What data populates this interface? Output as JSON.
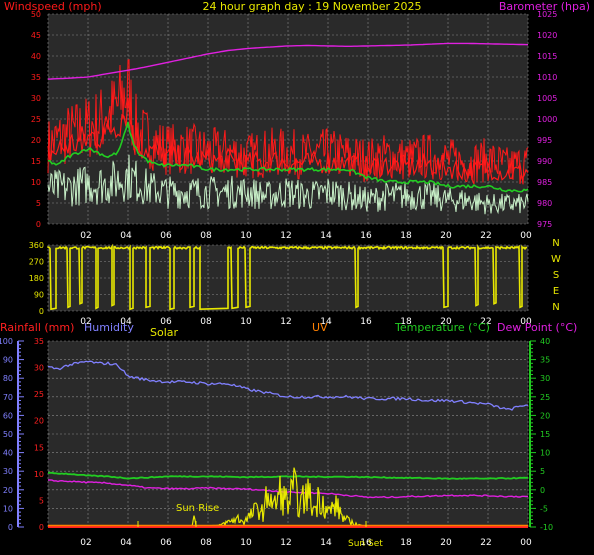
{
  "title": "24 hour graph day : 19 November 2025",
  "colors": {
    "background": "#000000",
    "plot_background": "#2a2a2a",
    "grid": "#8a8a8a",
    "wind_speed": "#ff1a1a",
    "wind_gust_line": "#22cc22",
    "wind_avg": "#c8f0c8",
    "barometer": "#e020e0",
    "direction": "#e8e800",
    "rainfall": "#ff2020",
    "humidity": "#8080ff",
    "solar": "#e8e800",
    "uv": "#ff8000",
    "temperature": "#22cc22",
    "dew_point": "#e020e0"
  },
  "chart_data": [
    {
      "type": "line",
      "name": "wind-barometer",
      "left_axis_label": "Windspeed (mph)",
      "right_axis_label": "Barometer (hpa)",
      "left_ylim": [
        0,
        50
      ],
      "left_ticks": [
        "0",
        "5",
        "10",
        "15",
        "20",
        "25",
        "30",
        "35",
        "40",
        "45",
        "50"
      ],
      "right_ylim": [
        975,
        1025
      ],
      "right_ticks": [
        "975",
        "980",
        "985",
        "990",
        "995",
        "1000",
        "1005",
        "1010",
        "1015",
        "1020",
        "1025"
      ],
      "x_ticks": [
        "02",
        "04",
        "06",
        "08",
        "10",
        "12",
        "14",
        "16",
        "18",
        "20",
        "22",
        "00"
      ],
      "x_hours": [
        0,
        24
      ],
      "grid": true,
      "series": [
        {
          "key": "wind_max",
          "axis": "left",
          "color_key": "wind_speed",
          "x": [
            0,
            1,
            2,
            3,
            3.5,
            3.8,
            4,
            4.3,
            4.6,
            5,
            5.5,
            6,
            7,
            8,
            9,
            10,
            11,
            12,
            13,
            14,
            15,
            16,
            17,
            18,
            19,
            20,
            21,
            22,
            23,
            24
          ],
          "y": [
            22,
            25,
            27,
            30,
            33,
            36,
            38,
            28,
            25,
            24,
            22,
            21,
            21,
            20,
            20,
            19,
            20,
            20,
            19,
            20,
            19,
            18,
            19,
            18,
            19,
            18,
            17,
            18,
            16,
            17
          ]
        },
        {
          "key": "wind_gust_line",
          "axis": "left",
          "color_key": "wind_gust_line",
          "x": [
            0,
            0.5,
            1,
            1.5,
            2,
            2.5,
            3,
            3.5,
            3.8,
            4,
            4.2,
            4.5,
            5,
            5.5,
            6,
            6.5,
            7,
            8,
            9,
            10,
            11,
            12,
            13,
            14,
            15,
            16,
            17,
            18,
            19,
            20,
            21,
            22,
            23,
            24
          ],
          "y": [
            15,
            14,
            16,
            17,
            18,
            17,
            16,
            17,
            21,
            24,
            20,
            17,
            15,
            14,
            14,
            14,
            14,
            13,
            13,
            13,
            13,
            13,
            13,
            13,
            13,
            11,
            10,
            10,
            10,
            9,
            9,
            9,
            8,
            8
          ]
        },
        {
          "key": "wind_avg",
          "axis": "left",
          "color_key": "wind_avg",
          "x": [
            0,
            1,
            2,
            3,
            4,
            5,
            6,
            7,
            8,
            9,
            10,
            11,
            12,
            13,
            14,
            15,
            16,
            17,
            18,
            19,
            20,
            21,
            22,
            23,
            24
          ],
          "y": [
            9,
            9,
            10,
            10,
            12,
            9,
            8,
            8,
            8,
            8,
            8,
            7,
            8,
            7,
            8,
            7,
            6,
            7,
            7,
            7,
            6,
            6,
            5,
            5,
            5
          ]
        },
        {
          "key": "barometer",
          "axis": "right",
          "color_key": "barometer",
          "x": [
            0,
            1,
            2,
            3,
            4,
            5,
            6,
            7,
            8,
            9,
            10,
            11,
            12,
            13,
            14,
            15,
            16,
            17,
            18,
            19,
            20,
            21,
            22,
            23,
            24
          ],
          "y": [
            1009.5,
            1009.7,
            1010,
            1010.8,
            1011.6,
            1012.5,
            1013.5,
            1014.5,
            1015.5,
            1016.3,
            1016.8,
            1017.1,
            1017.4,
            1017.5,
            1017.4,
            1017.3,
            1017.4,
            1017.5,
            1017.6,
            1017.8,
            1018,
            1018,
            1017.9,
            1017.8,
            1017.7
          ]
        }
      ]
    },
    {
      "type": "line",
      "name": "wind-direction",
      "ylim": [
        0,
        360
      ],
      "left_ticks": [
        "0",
        "90",
        "180",
        "270",
        "360"
      ],
      "right_labels": [
        "N",
        "W",
        "S",
        "E",
        "N"
      ],
      "x_ticks": [
        "02",
        "04",
        "06",
        "08",
        "10",
        "12",
        "14",
        "16",
        "18",
        "20",
        "22",
        "00"
      ],
      "x_hours": [
        0,
        24
      ],
      "grid": true,
      "baseline": 345,
      "drops": [
        {
          "from": 0.15,
          "to": 0.4,
          "value": 10
        },
        {
          "from": 1.0,
          "to": 1.1,
          "value": 20
        },
        {
          "from": 1.6,
          "to": 1.7,
          "value": 40
        },
        {
          "from": 2.4,
          "to": 2.5,
          "value": 15
        },
        {
          "from": 3.2,
          "to": 3.3,
          "value": 30
        },
        {
          "from": 4.1,
          "to": 4.25,
          "value": 10
        },
        {
          "from": 4.9,
          "to": 5.1,
          "value": 20
        },
        {
          "from": 6.1,
          "to": 6.3,
          "value": 10
        },
        {
          "from": 7.1,
          "to": 7.3,
          "value": 20
        },
        {
          "from": 7.6,
          "to": 9.0,
          "value": 10
        },
        {
          "from": 9.2,
          "to": 9.5,
          "value": 15
        },
        {
          "from": 9.9,
          "to": 10.1,
          "value": 20
        },
        {
          "from": 15.4,
          "to": 15.5,
          "value": 20
        },
        {
          "from": 19.8,
          "to": 20.0,
          "value": 20
        },
        {
          "from": 21.4,
          "to": 21.5,
          "value": 30
        },
        {
          "from": 22.3,
          "to": 22.4,
          "value": 40
        },
        {
          "from": 23.6,
          "to": 23.7,
          "value": 20
        }
      ]
    },
    {
      "type": "line",
      "name": "rain-humidity-temperature",
      "labels": {
        "rainfall": "Rainfall (mm)",
        "humidity": "Humidity",
        "solar": "Solar",
        "uv": "UV",
        "temperature": "Temperature (°C)",
        "dew_point": "Dew Point (°C)"
      },
      "humidity_ticks": [
        "0",
        "10",
        "20",
        "30",
        "40",
        "50",
        "60",
        "70",
        "80",
        "90",
        "100"
      ],
      "humidity_ylim": [
        0,
        100
      ],
      "rain_ticks": [
        "0",
        "5",
        "10",
        "15",
        "20",
        "25",
        "30",
        "35"
      ],
      "rain_ylim": [
        0,
        35
      ],
      "temp_ticks": [
        "-10",
        "-5",
        "0",
        "5",
        "10",
        "15",
        "20",
        "25",
        "30",
        "35",
        "40"
      ],
      "temp_ylim": [
        -10,
        40
      ],
      "x_ticks": [
        "02",
        "04",
        "06",
        "08",
        "10",
        "12",
        "14",
        "16",
        "18",
        "20",
        "22",
        "00"
      ],
      "x_hours": [
        0,
        24
      ],
      "grid": true,
      "annotations": [
        {
          "text": "Sun Rise",
          "hour": 7.4
        },
        {
          "text": "Sun Set",
          "hour": 15.9
        }
      ],
      "series": [
        {
          "key": "humidity",
          "axis": "humidity",
          "color_key": "humidity",
          "x": [
            0,
            0.5,
            1,
            1.5,
            2,
            2.5,
            3,
            3.5,
            4,
            4.5,
            5,
            6,
            7,
            8,
            9,
            10,
            11,
            12,
            13,
            14,
            15,
            16,
            17,
            18,
            19,
            20,
            21,
            22,
            23,
            24
          ],
          "y": [
            86,
            85,
            87,
            88,
            89,
            88,
            88,
            87,
            81,
            80,
            79,
            78,
            78,
            77,
            77,
            74,
            72,
            70,
            70,
            70,
            70,
            69,
            69,
            69,
            68,
            68,
            67,
            66,
            63,
            66
          ]
        },
        {
          "key": "temperature",
          "axis": "temp",
          "color_key": "temperature",
          "x": [
            0,
            1,
            2,
            3,
            4,
            5,
            6,
            7,
            8,
            9,
            10,
            11,
            12,
            13,
            14,
            15,
            16,
            17,
            18,
            19,
            20,
            21,
            22,
            23,
            24
          ],
          "y": [
            4.5,
            4.3,
            3.8,
            3.6,
            3.1,
            3.3,
            3.6,
            3.6,
            3.6,
            3.5,
            3.4,
            3.5,
            3.6,
            3.5,
            3.5,
            3.5,
            3.4,
            3.3,
            3.2,
            3.1,
            3.0,
            3.0,
            3.0,
            3.1,
            3.2
          ]
        },
        {
          "key": "dew_point",
          "axis": "temp",
          "color_key": "dew_point",
          "x": [
            0,
            1,
            2,
            3,
            4,
            5,
            6,
            7,
            8,
            9,
            10,
            11,
            12,
            13,
            14,
            15,
            16,
            17,
            18,
            19,
            20,
            21,
            22,
            23,
            24
          ],
          "y": [
            2.5,
            2.3,
            2.0,
            1.8,
            1.2,
            0.5,
            0.3,
            0.3,
            0.5,
            0.3,
            0.2,
            -0.2,
            -0.6,
            -0.8,
            -1.0,
            -1.5,
            -2.0,
            -2.0,
            -1.8,
            -1.7,
            -1.5,
            -1.5,
            -1.6,
            -1.8,
            -1.8
          ]
        },
        {
          "key": "solar",
          "axis": "rain",
          "color_key": "solar",
          "x": [
            0,
            7.2,
            7.3,
            7.4,
            8.5,
            9.2,
            9.5,
            9.8,
            10.2,
            10.5,
            10.8,
            11.0,
            11.3,
            11.6,
            12.0,
            12.3,
            12.6,
            13.0,
            13.3,
            13.6,
            14.0,
            14.4,
            14.8,
            15.2,
            15.6,
            16.0,
            24
          ],
          "y": [
            0,
            0,
            2,
            0.2,
            0.3,
            1.5,
            2,
            1.2,
            3,
            4.5,
            3,
            9,
            4.5,
            8,
            5.5,
            9,
            5,
            8,
            4,
            7.5,
            3.5,
            5,
            2,
            1,
            0.4,
            0,
            0
          ]
        },
        {
          "key": "rainfall",
          "axis": "rain",
          "color_key": "rainfall",
          "x": [
            0,
            24
          ],
          "y": [
            0,
            0
          ]
        },
        {
          "key": "uv",
          "axis": "rain",
          "color_key": "uv",
          "x": [
            0,
            24
          ],
          "y": [
            0.1,
            0.1
          ]
        }
      ]
    }
  ]
}
